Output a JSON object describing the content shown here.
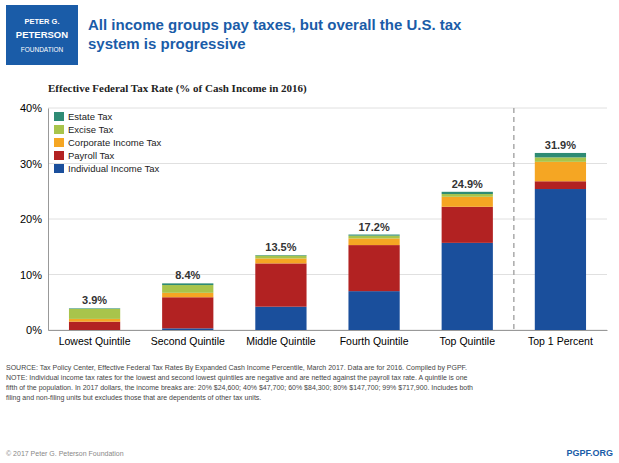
{
  "chart_data": {
    "type": "bar",
    "stacked": true,
    "title": "All income groups pay taxes, but overall the U.S. tax\nsystem is progressive",
    "title_color": "#1a5ca8",
    "logo_text": [
      "PETER G.",
      "PETERSON",
      "FOUNDATION"
    ],
    "subtitle": "Effective Federal Tax Rate (% of Cash Income in 2016)",
    "categories": [
      "Lowest Quintile",
      "Second Quintile",
      "Middle Quintile",
      "Fourth Quintile",
      "Top Quintile",
      "Top 1 Percent"
    ],
    "series": [
      {
        "name": "Individual Income Tax",
        "color": "#1a4f9c",
        "values": [
          0.0,
          0.3,
          4.2,
          7.0,
          15.7,
          25.4
        ]
      },
      {
        "name": "Payroll Tax",
        "color": "#b22222",
        "values": [
          1.5,
          5.6,
          7.8,
          8.3,
          6.5,
          1.4
        ]
      },
      {
        "name": "Corporate Income Tax",
        "color": "#f5a623",
        "values": [
          0.5,
          0.8,
          0.9,
          1.2,
          1.8,
          3.5
        ]
      },
      {
        "name": "Excise Tax",
        "color": "#a8c44b",
        "values": [
          1.8,
          1.4,
          0.5,
          0.5,
          0.5,
          0.8
        ]
      },
      {
        "name": "Estate Tax",
        "color": "#2e8b74",
        "values": [
          0.1,
          0.3,
          0.1,
          0.2,
          0.4,
          0.8
        ]
      }
    ],
    "totals": [
      3.9,
      8.4,
      13.5,
      17.2,
      24.9,
      31.9
    ],
    "total_labels": [
      "3.9%",
      "8.4%",
      "13.5%",
      "17.2%",
      "24.9%",
      "31.9%"
    ],
    "ylim": [
      0,
      40
    ],
    "yticks": [
      {
        "value": 0,
        "label": "0%"
      },
      {
        "value": 10,
        "label": "10%"
      },
      {
        "value": 20,
        "label": "20%"
      },
      {
        "value": 30,
        "label": "30%"
      },
      {
        "value": 40,
        "label": "40%"
      }
    ],
    "grid": true,
    "legend": "upper left",
    "source_text": "SOURCE: Tax Policy Center, Effective Federal Tax Rates By Expanded Cash Income Percentile, March 2017. Data are for 2016. Compiled by PGPF.\nNOTE: Individual income tax rates for the lowest and second lowest quintiles are negative and are netted against the payroll tax rate. A quintile is one\nfifth of the population. In 2017 dollars, the income breaks are: 20% $24,600; 40% $47,700; 60% $84,300; 80% $147,700; 99% $717,900. Includes both\nfiling and non-filing units but excludes those that are dependents of other tax units.",
    "copyright_text": "© 2017 Peter G. Peterson Foundation",
    "pgpf_text": "PGPF.ORG"
  }
}
